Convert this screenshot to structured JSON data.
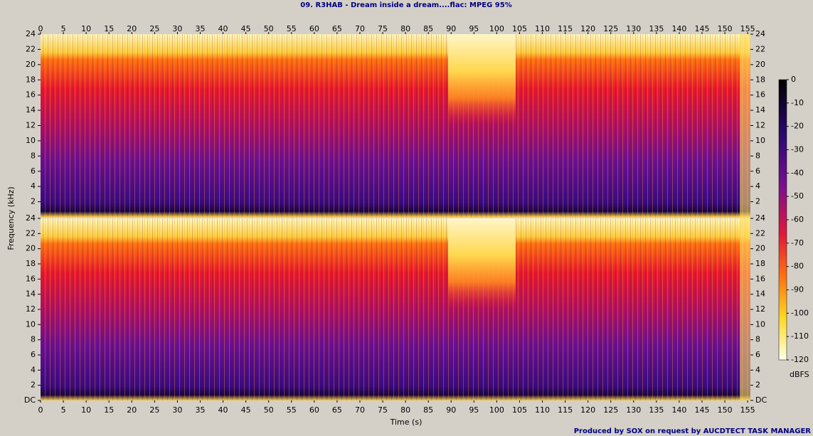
{
  "chart_data": {
    "type": "spectrogram",
    "title": "09. R3HAB - Dream inside a dream....flac: MPEG 95%",
    "xlabel": "Time (s)",
    "ylabel": "Frequency (kHz)",
    "xlim": [
      0,
      155.6
    ],
    "xticks": [
      0,
      5,
      10,
      15,
      20,
      25,
      30,
      35,
      40,
      45,
      50,
      55,
      60,
      65,
      70,
      75,
      80,
      85,
      90,
      95,
      100,
      105,
      110,
      115,
      120,
      125,
      130,
      135,
      140,
      145,
      150,
      155
    ],
    "ylim": [
      0,
      24
    ],
    "yticks": [
      {
        "value": 0,
        "label": "DC"
      },
      2,
      4,
      6,
      8,
      10,
      12,
      14,
      16,
      18,
      20,
      22,
      24
    ],
    "colorbar": {
      "label": "dBFS",
      "lim": [
        -120,
        0
      ],
      "ticks": [
        0,
        -10,
        -20,
        -30,
        -40,
        -50,
        -60,
        -70,
        -80,
        -90,
        -100,
        -110,
        -120
      ]
    },
    "footer": "Produced by SOX on request by AUCDTECT TASK MANAGER"
  }
}
